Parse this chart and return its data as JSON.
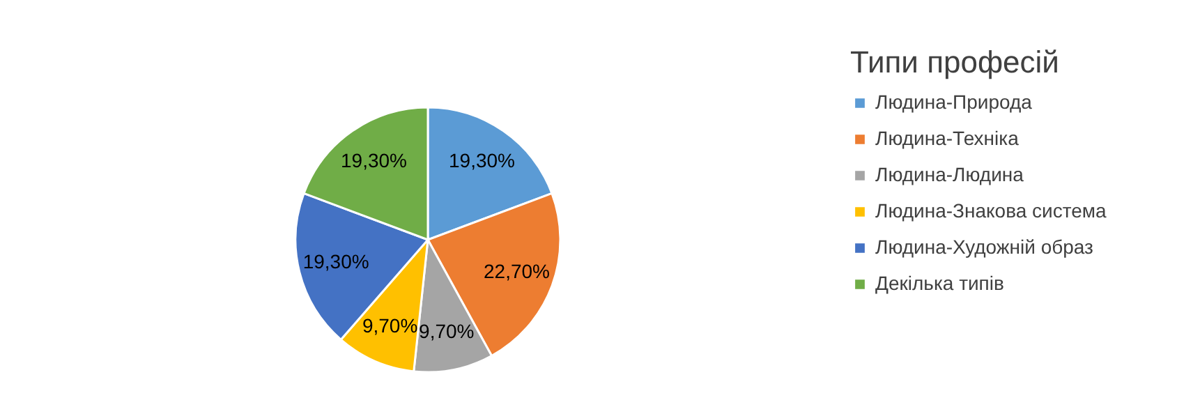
{
  "chart_data": {
    "type": "pie",
    "legend_title": "Типи професій",
    "legend": "right",
    "categories": [
      "Людина-Природа",
      "Людина-Техніка",
      "Людина-Людина",
      "Людина-Знакова система",
      "Людина-Художній образ",
      "Декілька типів"
    ],
    "values": [
      19.3,
      22.7,
      9.7,
      9.7,
      19.3,
      19.3
    ],
    "value_labels": [
      "19,30%",
      "22,70%",
      "9,70%",
      "9,70%",
      "19,30%",
      "19,30%"
    ],
    "colors": [
      "#5b9bd5",
      "#ed7d31",
      "#a5a5a5",
      "#ffc000",
      "#4472c4",
      "#70ad47"
    ]
  }
}
